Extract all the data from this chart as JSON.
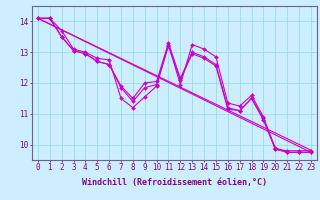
{
  "background_color": "#cceeff",
  "line_color": "#cc00cc",
  "grid_color": "#99dddd",
  "xlabel": "Windchill (Refroidissement éolien,°C)",
  "xlabel_fontsize": 6.0,
  "xtick_labels": [
    "0",
    "1",
    "2",
    "3",
    "4",
    "5",
    "6",
    "7",
    "8",
    "9",
    "10",
    "11",
    "12",
    "13",
    "14",
    "15",
    "16",
    "17",
    "18",
    "19",
    "20",
    "21",
    "22",
    "23"
  ],
  "ytick_labels": [
    "10",
    "11",
    "12",
    "13",
    "14"
  ],
  "ylim": [
    9.5,
    14.5
  ],
  "xlim": [
    -0.5,
    23.5
  ],
  "series": [
    [
      14.1,
      14.1,
      13.7,
      13.1,
      13.0,
      12.8,
      12.75,
      11.5,
      11.2,
      11.55,
      11.9,
      13.25,
      11.95,
      13.25,
      13.1,
      12.85,
      11.35,
      11.25,
      11.6,
      10.9,
      9.85,
      9.8,
      9.8,
      9.8
    ],
    [
      14.1,
      14.1,
      13.5,
      13.05,
      12.95,
      12.7,
      12.6,
      11.9,
      11.5,
      12.0,
      12.05,
      13.3,
      12.15,
      13.0,
      12.85,
      12.6,
      11.2,
      11.1,
      11.5,
      10.85,
      9.9,
      9.75,
      9.75,
      9.75
    ],
    [
      14.1,
      14.1,
      13.5,
      13.05,
      12.95,
      12.7,
      12.6,
      11.85,
      11.4,
      11.85,
      11.95,
      13.2,
      12.1,
      12.95,
      12.8,
      12.55,
      11.15,
      11.1,
      11.5,
      10.8,
      9.85,
      9.75,
      9.75,
      9.75
    ]
  ],
  "trend_lines": [
    {
      "x": [
        0,
        23
      ],
      "y": [
        14.1,
        9.75
      ]
    },
    {
      "x": [
        0,
        23
      ],
      "y": [
        14.1,
        9.82
      ]
    }
  ],
  "marker_size": 2.0,
  "line_width": 0.8,
  "tick_fontsize": 5.5,
  "axis_color": "#880088",
  "spine_color": "#666688"
}
